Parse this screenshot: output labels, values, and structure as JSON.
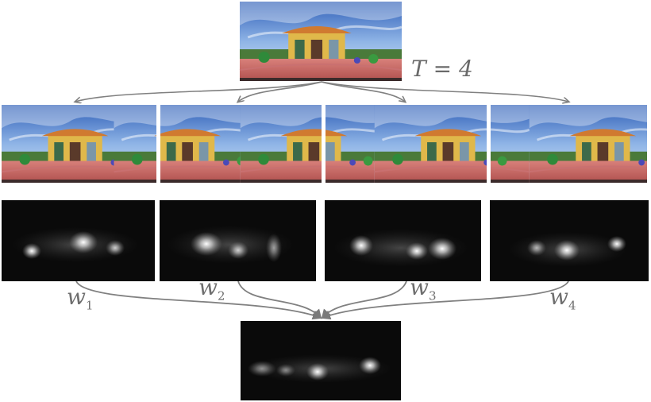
{
  "labels": {
    "t": "T = 4",
    "weights": [
      {
        "sym": "w",
        "sub": "1"
      },
      {
        "sym": "w",
        "sub": "2"
      },
      {
        "sym": "w",
        "sub": "3"
      },
      {
        "sym": "w",
        "sub": "4"
      }
    ]
  },
  "colors": {
    "arrow": "#808080",
    "label": "#6e6e6e",
    "saliency_bg": "#0a0a0a"
  },
  "panels": {
    "input": "panorama-image",
    "rotations": [
      "rotated-panorama",
      "rotated-panorama",
      "rotated-panorama",
      "rotated-panorama"
    ],
    "saliency_maps": [
      "saliency-map",
      "saliency-map",
      "saliency-map",
      "saliency-map"
    ],
    "output": "fused-saliency-map"
  }
}
